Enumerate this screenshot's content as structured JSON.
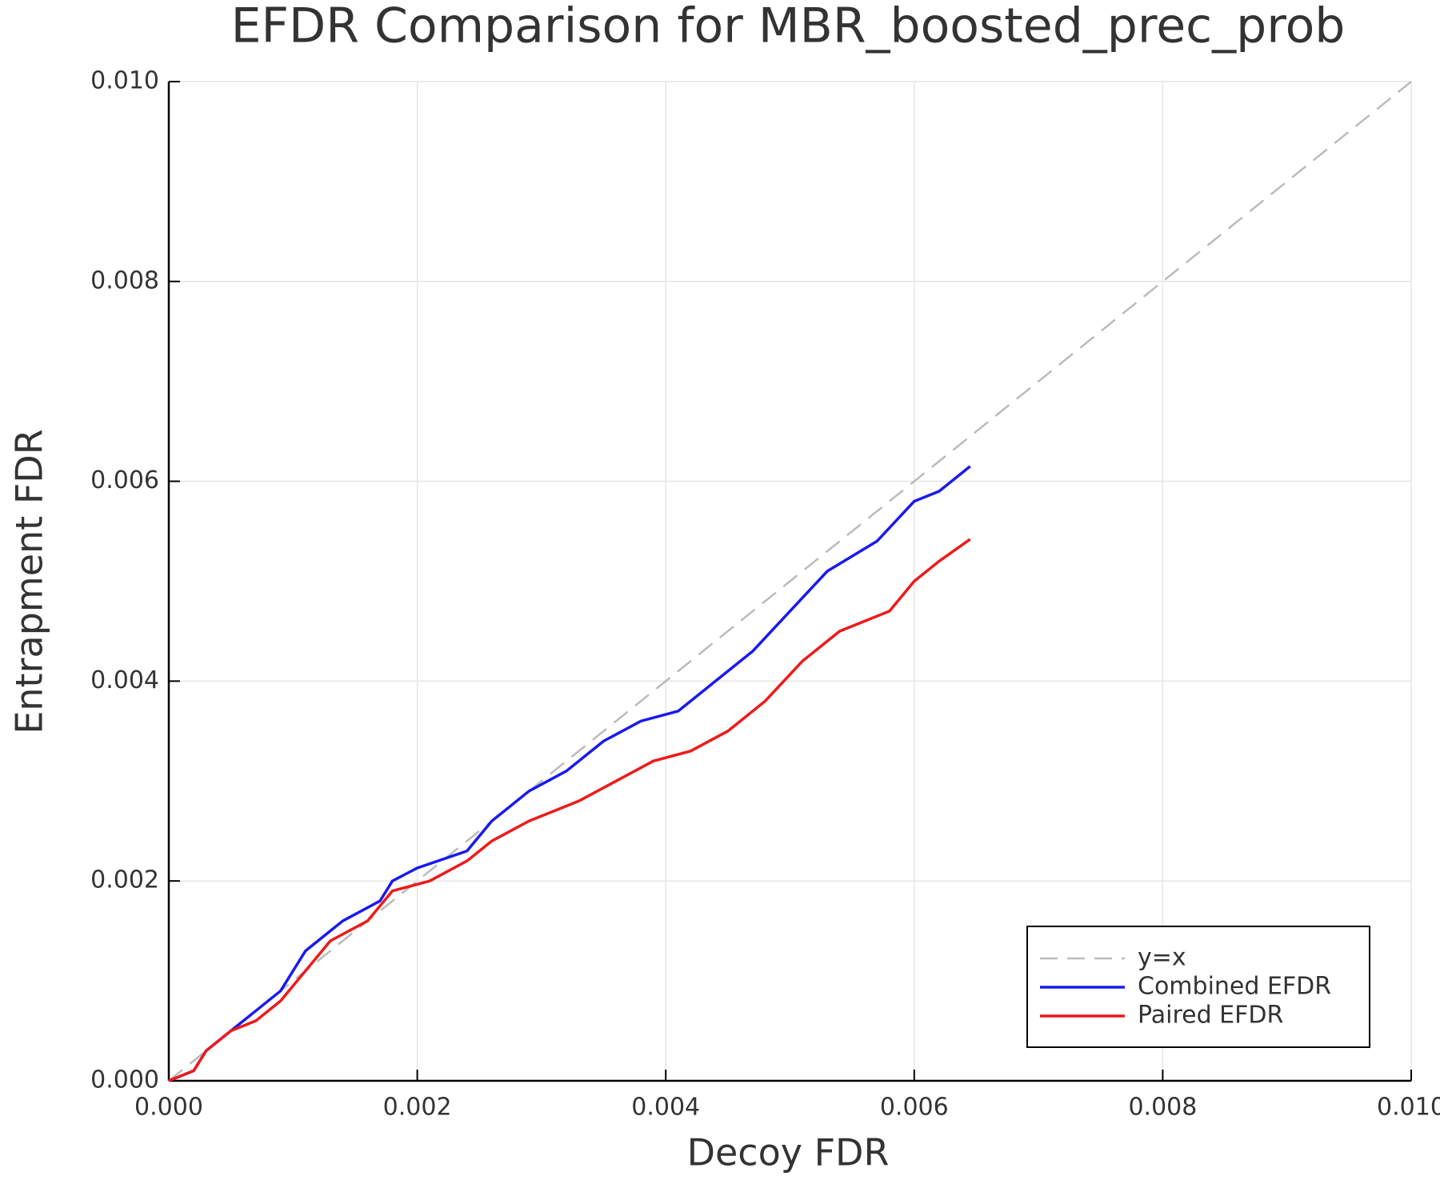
{
  "chart_data": {
    "type": "line",
    "title": "EFDR Comparison for MBR_boosted_prec_prob",
    "x_label": "Decoy FDR",
    "y_label": "Entrapment FDR",
    "xlim": [
      0,
      0.01
    ],
    "ylim": [
      0,
      0.01
    ],
    "xticks": [
      {
        "value": 0,
        "label": "0.000"
      },
      {
        "value": 0.002,
        "label": "0.002"
      },
      {
        "value": 0.004,
        "label": "0.004"
      },
      {
        "value": 0.006,
        "label": "0.006"
      },
      {
        "value": 0.008,
        "label": "0.008"
      },
      {
        "value": 0.01,
        "label": "0.010"
      }
    ],
    "yticks": [
      {
        "value": 0,
        "label": "0.000"
      },
      {
        "value": 0.002,
        "label": "0.002"
      },
      {
        "value": 0.004,
        "label": "0.004"
      },
      {
        "value": 0.006,
        "label": "0.006"
      },
      {
        "value": 0.008,
        "label": "0.008"
      },
      {
        "value": 0.01,
        "label": "0.010"
      }
    ],
    "grid": true,
    "legend": "bottom right",
    "series": [
      {
        "name": "y=x",
        "color": "#bbbbbb",
        "linestyle": "dashed",
        "x": [
          0,
          0.01
        ],
        "values": [
          0,
          0.01
        ]
      },
      {
        "name": "Combined EFDR",
        "color": "#1a1aee",
        "linestyle": "solid",
        "x": [
          0,
          0.0002,
          0.0003,
          0.0005,
          0.0007,
          0.0009,
          0.0011,
          0.0013,
          0.0014,
          0.0017,
          0.0018,
          0.002,
          0.0024,
          0.0026,
          0.0029,
          0.0032,
          0.0035,
          0.0038,
          0.0041,
          0.0044,
          0.0047,
          0.005,
          0.0053,
          0.0057,
          0.006,
          0.0062,
          0.00645
        ],
        "values": [
          0,
          0.0001,
          0.0003,
          0.0005,
          0.0007,
          0.0009,
          0.0013,
          0.0015,
          0.0016,
          0.0018,
          0.002,
          0.00213,
          0.0023,
          0.0026,
          0.0029,
          0.0031,
          0.0034,
          0.0036,
          0.0037,
          0.004,
          0.0043,
          0.0047,
          0.0051,
          0.0054,
          0.0058,
          0.0059,
          0.00615
        ]
      },
      {
        "name": "Paired EFDR",
        "color": "#ee1a1a",
        "linestyle": "solid",
        "x": [
          0,
          0.0002,
          0.0003,
          0.0005,
          0.0007,
          0.0009,
          0.0011,
          0.0013,
          0.0016,
          0.0018,
          0.0021,
          0.0024,
          0.0026,
          0.0029,
          0.0033,
          0.0036,
          0.0039,
          0.0042,
          0.0045,
          0.0048,
          0.0051,
          0.0054,
          0.0058,
          0.006,
          0.0062,
          0.00645
        ],
        "values": [
          0,
          0.0001,
          0.0003,
          0.0005,
          0.0006,
          0.0008,
          0.0011,
          0.0014,
          0.0016,
          0.0019,
          0.002,
          0.0022,
          0.0024,
          0.0026,
          0.0028,
          0.003,
          0.0032,
          0.0033,
          0.0035,
          0.0038,
          0.0042,
          0.0045,
          0.0047,
          0.005,
          0.0052,
          0.00542
        ]
      }
    ]
  }
}
